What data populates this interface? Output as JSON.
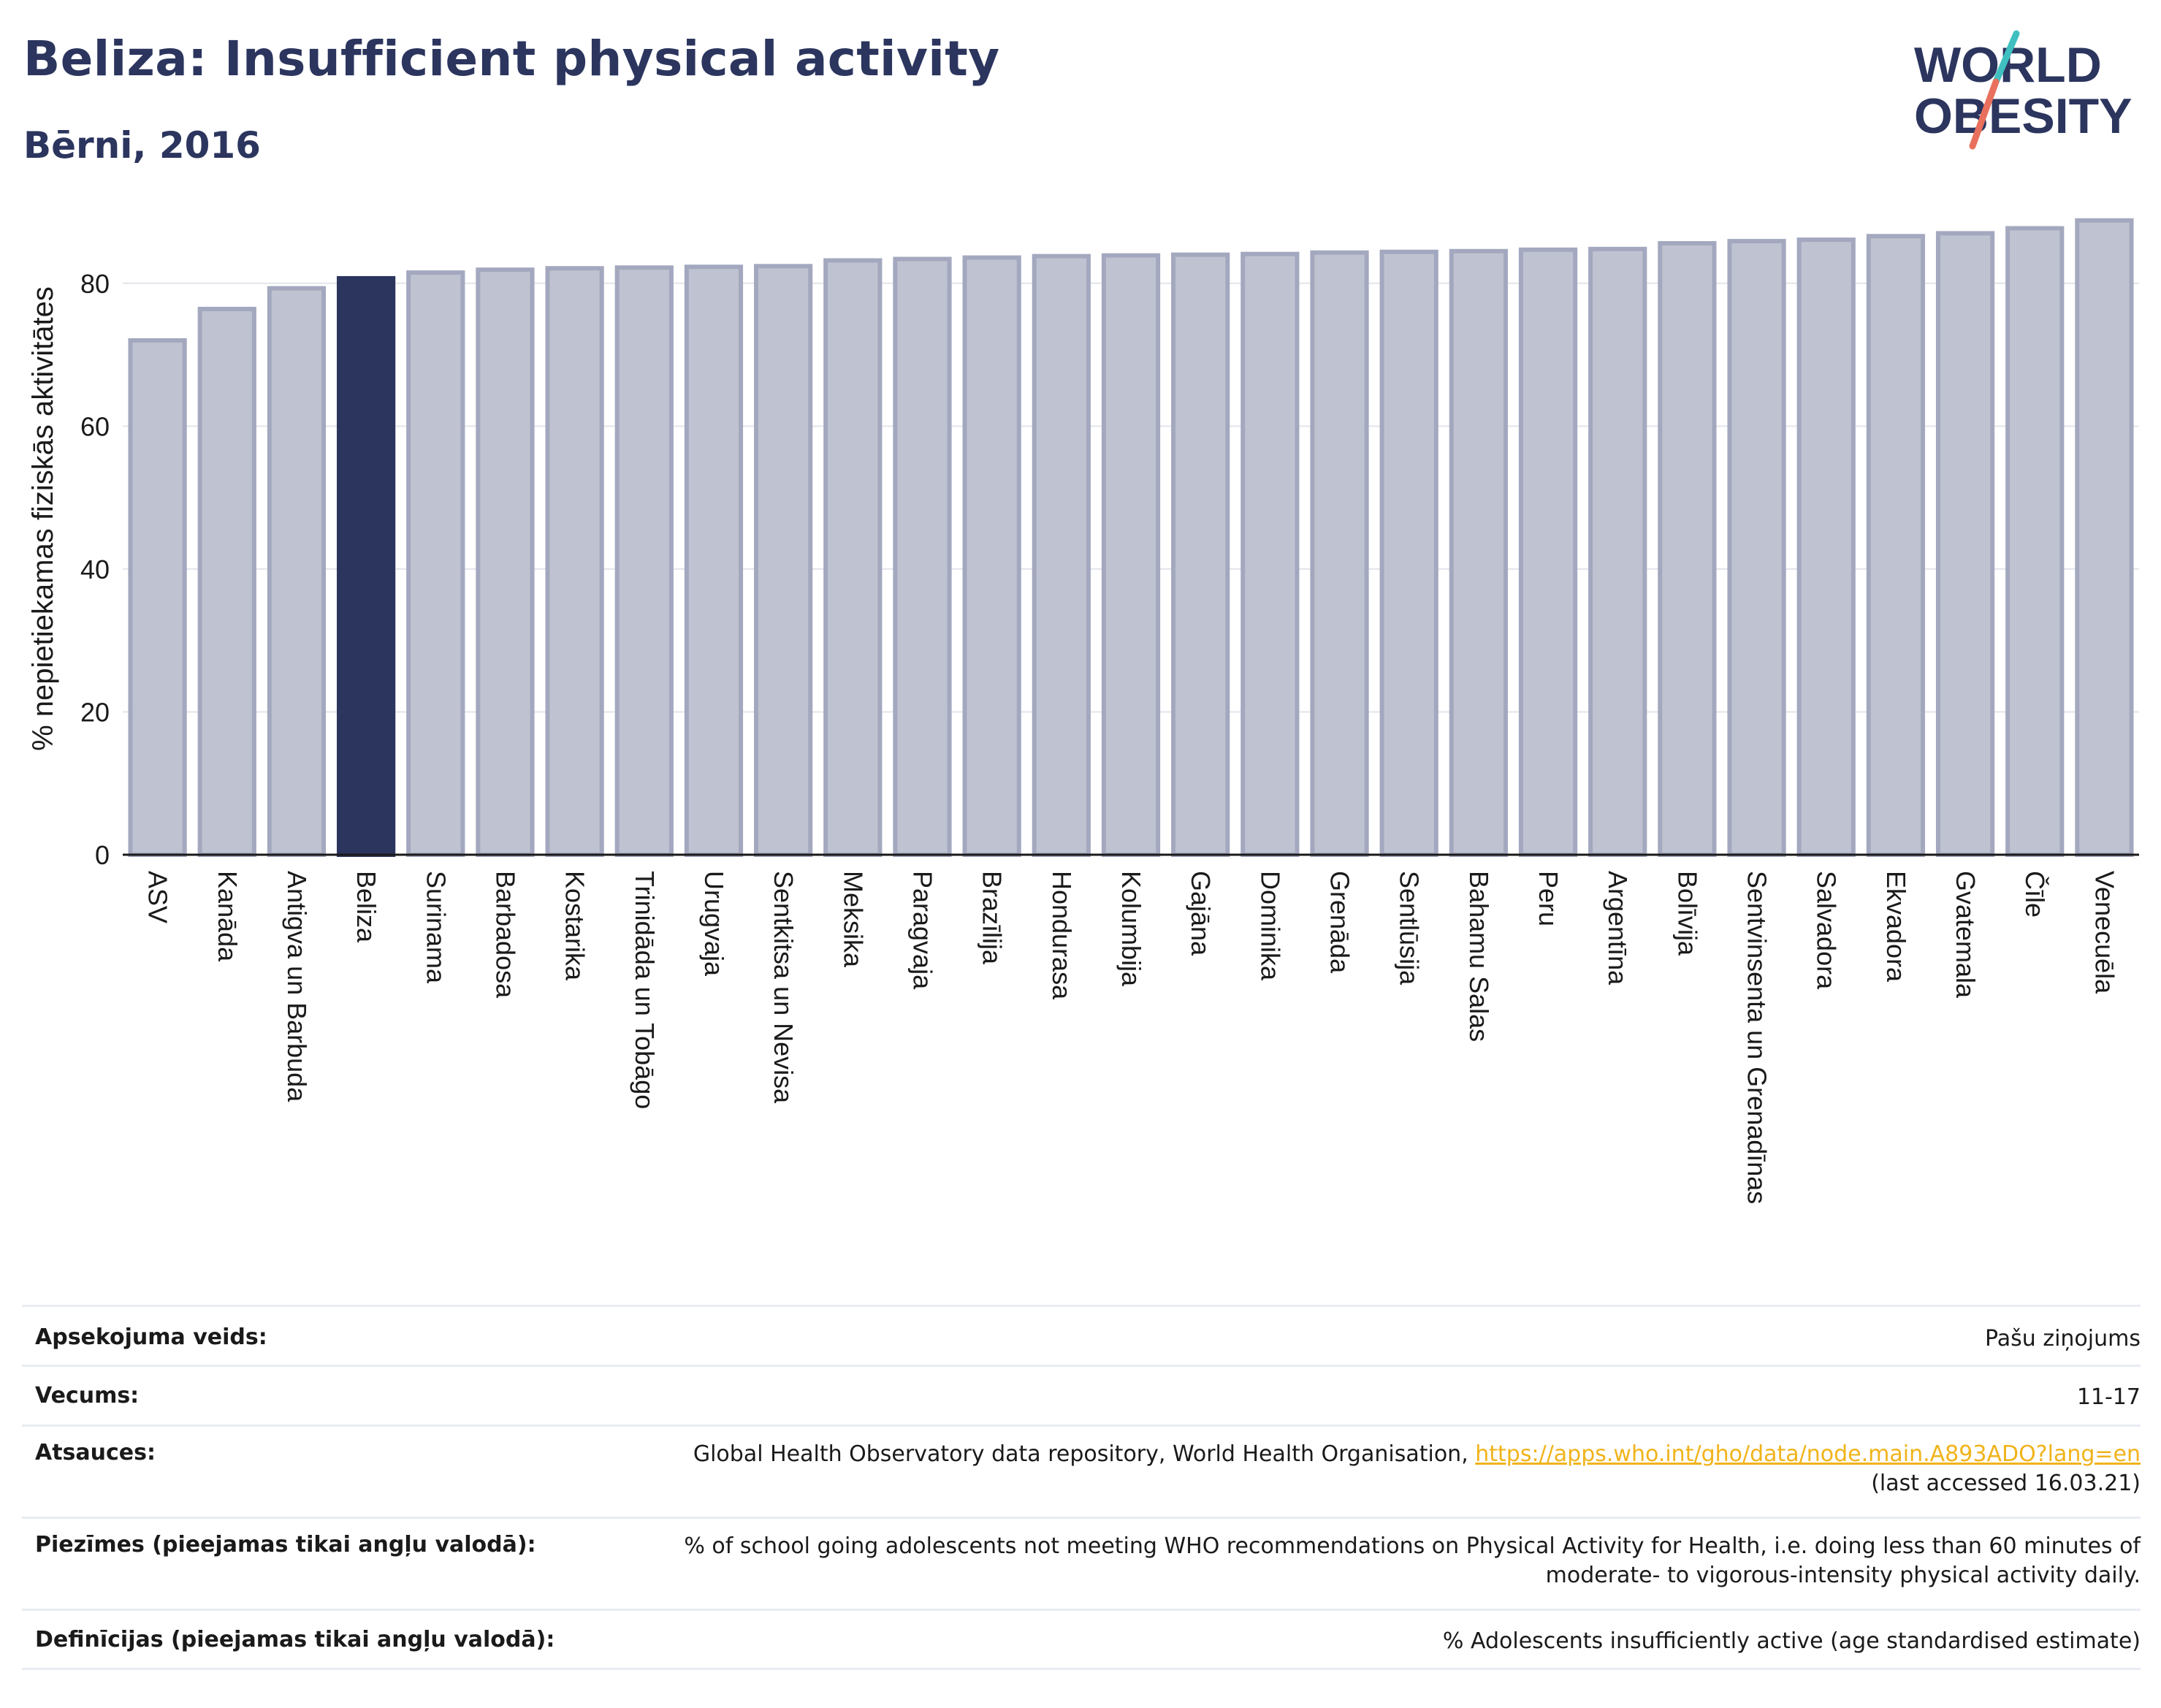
{
  "header": {
    "title": "Beliza: Insufficient physical activity",
    "subtitle": "Bērni, 2016"
  },
  "logo": {
    "line1": "WORLD",
    "line2": "OBESITY",
    "text_color": "#2b355e",
    "accent_teal": "#3fbfbf",
    "accent_coral": "#e8705d"
  },
  "chart_data": {
    "type": "bar",
    "ylabel": "% nepietiekamas fiziskās aktivitātes",
    "ylim": [
      0,
      90
    ],
    "yticks": [
      0,
      20,
      40,
      60,
      80
    ],
    "grid": true,
    "highlight_category": "Beliza",
    "colors": {
      "bar": "#bfc3d1",
      "bar_stroke": "#a3a8bf",
      "highlight": "#2b355e"
    },
    "categories": [
      "ASV",
      "Kanāda",
      "Antigva un Barbuda",
      "Beliza",
      "Surinama",
      "Barbadosa",
      "Kostarika",
      "Trinidāda un Tobāgo",
      "Urugvaja",
      "Sentkitsa un Nevisa",
      "Meksika",
      "Paragvaja",
      "Brazīlija",
      "Hondurasa",
      "Kolumbija",
      "Gajāna",
      "Dominika",
      "Grenāda",
      "Sentlūsija",
      "Bahamu Salas",
      "Peru",
      "Argentīna",
      "Bolīvija",
      "Sentvinsenta un Grenadīnas",
      "Salvadora",
      "Ekvadora",
      "Gvatemala",
      "Čīle",
      "Venecuēla"
    ],
    "values": [
      72.0,
      76.4,
      79.3,
      80.7,
      81.5,
      81.9,
      82.1,
      82.2,
      82.3,
      82.4,
      83.2,
      83.4,
      83.6,
      83.8,
      83.9,
      84.0,
      84.1,
      84.3,
      84.4,
      84.5,
      84.7,
      84.8,
      85.6,
      85.9,
      86.1,
      86.6,
      87.0,
      87.7,
      88.8
    ]
  },
  "info_table": [
    {
      "label": "Apsekojuma veids:",
      "value": "Pašu ziņojums"
    },
    {
      "label": "Vecums:",
      "value": "11-17"
    },
    {
      "label": "Atsauces:",
      "value_prefix": "Global Health Observatory data repository, World Health Organisation, ",
      "link": "https://apps.who.int/gho/data/node.main.A893ADO?lang=en",
      "value_suffix": "(last accessed 16.03.21)"
    },
    {
      "label": "Piezīmes (pieejamas tikai angļu valodā):",
      "value_line1": "% of school going adolescents not meeting WHO recommendations on Physical Activity for Health, i.e. doing less than 60 minutes of",
      "value_line2": "moderate- to vigorous-intensity physical activity daily."
    },
    {
      "label": "Definīcijas (pieejamas tikai angļu valodā):",
      "value": "% Adolescents insufficiently active (age standardised estimate)"
    }
  ]
}
